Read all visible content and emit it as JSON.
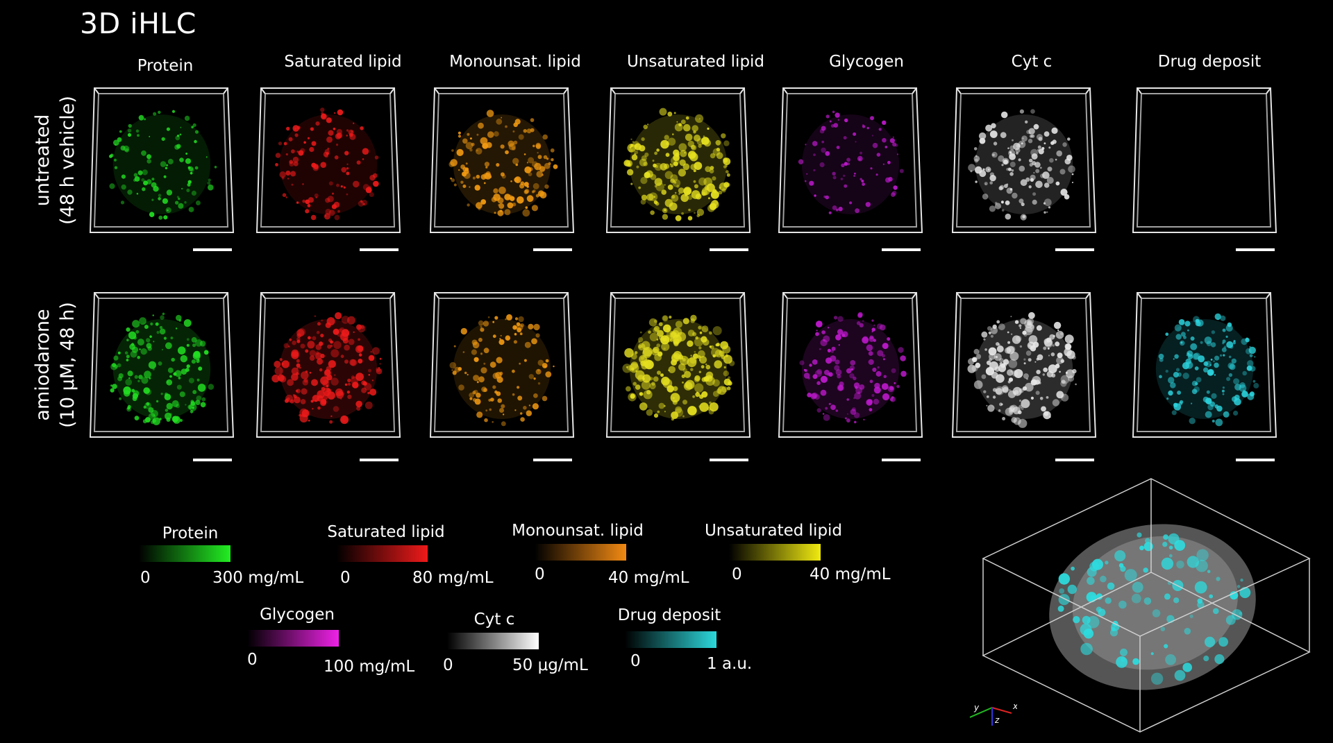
{
  "title": "3D iHLC",
  "columns": [
    {
      "label": "Protein",
      "color": "#22dd22"
    },
    {
      "label": "Saturated lipid",
      "color": "#ee1a1a"
    },
    {
      "label": "Monounsat. lipid",
      "color": "#f29a12"
    },
    {
      "label": "Unsaturated lipid",
      "color": "#e6e020"
    },
    {
      "label": "Glycogen",
      "color": "#c11ad0"
    },
    {
      "label": "Cyt c",
      "color": "#e8e8e8"
    },
    {
      "label": "Drug deposit",
      "color": "#2bd2dc"
    }
  ],
  "rows": [
    {
      "line1": "untreated",
      "line2": "(48 h vehicle)"
    },
    {
      "line1": "amiodarone",
      "line2": "(10 μM, 48 h)"
    }
  ],
  "colorbars": [
    {
      "label": "Protein",
      "min": "0",
      "max": "300 mg/mL",
      "color": "#22ee22"
    },
    {
      "label": "Saturated lipid",
      "min": "0",
      "max": "80 mg/mL",
      "color": "#ee1a1a"
    },
    {
      "label": "Monounsat. lipid",
      "min": "0",
      "max": "40 mg/mL",
      "color": "#f28a12"
    },
    {
      "label": "Unsaturated lipid",
      "min": "0",
      "max": "40 mg/mL",
      "color": "#f0ea10"
    },
    {
      "label": "Glycogen",
      "min": "0",
      "max": "100 mg/mL",
      "color": "#ee22e6"
    },
    {
      "label": "Cyt c",
      "min": "0",
      "max": "50 μg/mL",
      "color": "#ffffff"
    },
    {
      "label": "Drug deposit",
      "min": "0",
      "max": "1 a.u.",
      "color": "#2cd8dc"
    }
  ],
  "axes": {
    "x": "x",
    "y": "y",
    "z": "z"
  }
}
